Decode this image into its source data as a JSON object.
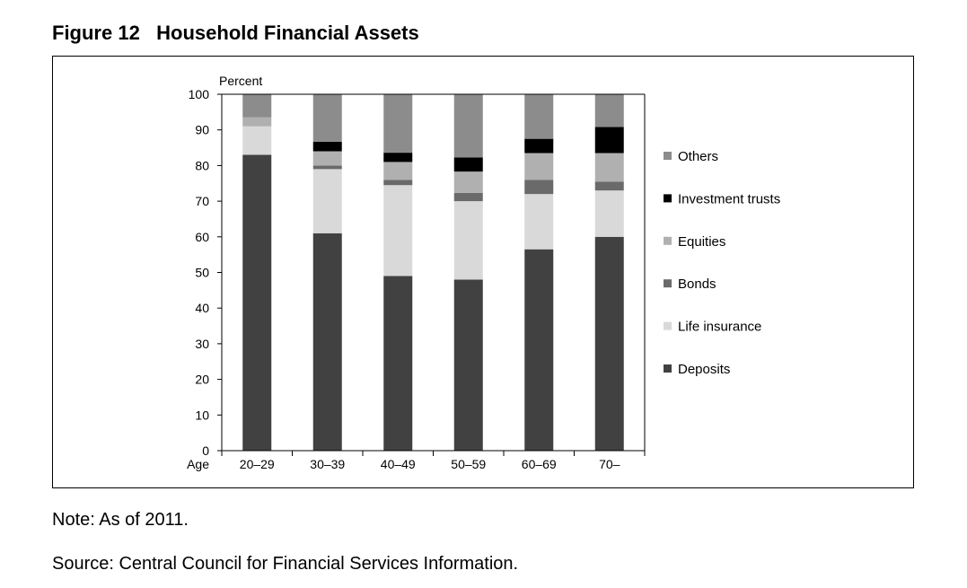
{
  "figure_title": "Figure 12   Household Financial Assets",
  "note": "Note: As of 2011.",
  "source": "Source: Central Council for Financial Services Information.",
  "colors": {
    "Deposits": "#414141",
    "Life insurance": "#d9d9d9",
    "Bonds": "#6a6a6a",
    "Equities": "#b0b0b0",
    "Investment trusts": "#000000",
    "Others": "#8c8c8c"
  },
  "chart_data": {
    "type": "bar",
    "stacked": true,
    "title": "",
    "ylabel": "Percent",
    "xlabel": "Age",
    "ylim": [
      0,
      100
    ],
    "yticks": [
      0,
      10,
      20,
      30,
      40,
      50,
      60,
      70,
      80,
      90,
      100
    ],
    "categories": [
      "20–29",
      "30–39",
      "40–49",
      "50–59",
      "60–69",
      "70–"
    ],
    "series": [
      {
        "name": "Deposits",
        "values": [
          83,
          61,
          49,
          48,
          56.5,
          60
        ]
      },
      {
        "name": "Life insurance",
        "values": [
          8,
          18,
          25.5,
          22,
          15.5,
          13
        ]
      },
      {
        "name": "Bonds",
        "values": [
          0,
          1,
          1.5,
          2.3,
          4,
          2.5
        ]
      },
      {
        "name": "Equities",
        "values": [
          2.5,
          4,
          5,
          6,
          7.5,
          8
        ]
      },
      {
        "name": "Investment trusts",
        "values": [
          0,
          2.7,
          2.6,
          4,
          4,
          7.3
        ]
      },
      {
        "name": "Others",
        "values": [
          6.5,
          13.3,
          16.4,
          17.7,
          12.5,
          9.2
        ]
      }
    ],
    "legend_order": [
      "Others",
      "Investment trusts",
      "Equities",
      "Bonds",
      "Life insurance",
      "Deposits"
    ],
    "legend_position": "right"
  }
}
